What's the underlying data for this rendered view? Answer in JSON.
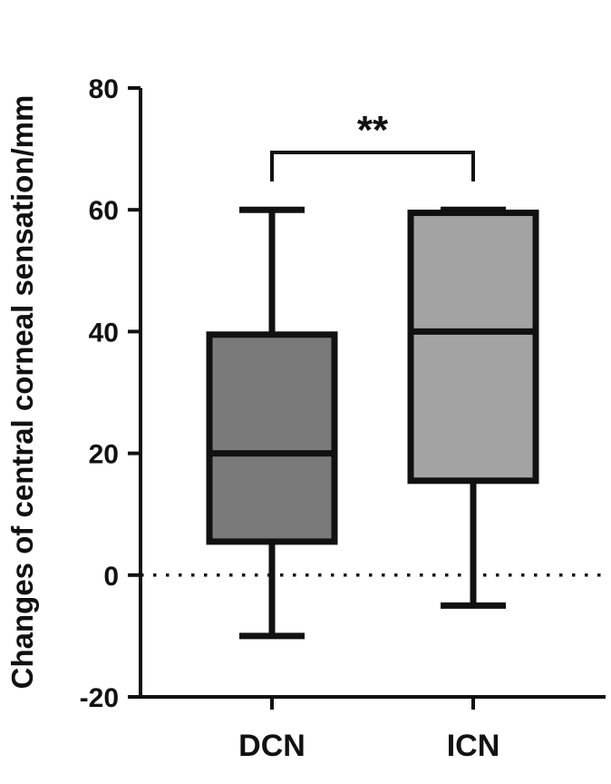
{
  "chart_data": {
    "type": "box",
    "ylabel": "Changes of central corneal sensation/mm",
    "xlabel": "",
    "ylim": [
      -20,
      80
    ],
    "yticks": [
      -20,
      0,
      20,
      40,
      60,
      80
    ],
    "reference_line_y": 0,
    "categories": [
      "DCN",
      "ICN"
    ],
    "boxes": [
      {
        "category": "DCN",
        "min": -10,
        "q1": 5.5,
        "median": 20,
        "q3": 39.5,
        "max": 60,
        "fill": "#7a7a7a"
      },
      {
        "category": "ICN",
        "min": -5,
        "q1": 15.5,
        "median": 40,
        "q3": 59.5,
        "max": 60,
        "fill": "#a3a3a3"
      }
    ],
    "significance": {
      "between": [
        "DCN",
        "ICN"
      ],
      "label": "**"
    }
  }
}
